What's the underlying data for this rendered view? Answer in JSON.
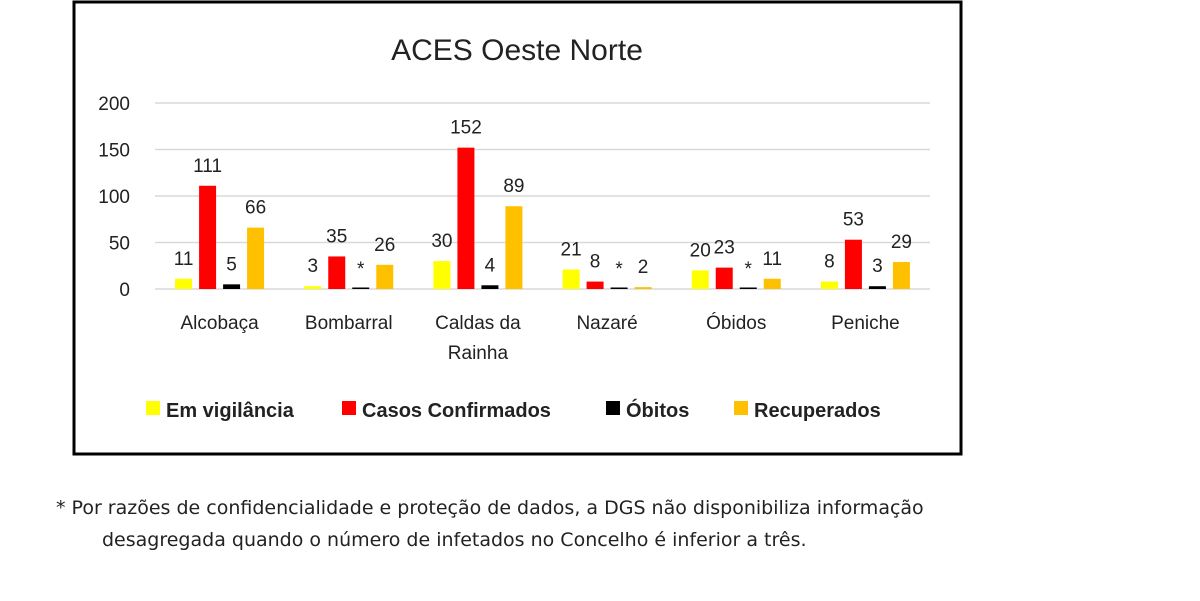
{
  "chart_data": {
    "type": "bar",
    "title": "ACES Oeste Norte",
    "categories": [
      "Alcobaça",
      "Bombarral",
      "Caldas da Rainha",
      "Nazaré",
      "Óbidos",
      "Peniche"
    ],
    "category_lines": [
      [
        "Alcobaça"
      ],
      [
        "Bombarral"
      ],
      [
        "Caldas da",
        "Rainha"
      ],
      [
        "Nazaré"
      ],
      [
        "Óbidos"
      ],
      [
        "Peniche"
      ]
    ],
    "series": [
      {
        "name": "Em vigilância",
        "color": "#ffff00",
        "values": [
          11,
          3,
          30,
          21,
          20,
          8
        ],
        "labels": [
          "11",
          "3",
          "30",
          "21",
          "20",
          "8"
        ]
      },
      {
        "name": "Casos Confirmados",
        "color": "#ff0000",
        "values": [
          111,
          35,
          152,
          8,
          23,
          53
        ],
        "labels": [
          "111",
          "35",
          "152",
          "8",
          "23",
          "53"
        ]
      },
      {
        "name": "Óbitos",
        "color": "#000000",
        "values": [
          5,
          0,
          4,
          0,
          0,
          3
        ],
        "labels": [
          "5",
          "*",
          "4",
          "*",
          "*",
          "3"
        ]
      },
      {
        "name": "Recuperados",
        "color": "#ffc000",
        "values": [
          66,
          26,
          89,
          2,
          11,
          29
        ],
        "labels": [
          "66",
          "26",
          "89",
          "2",
          "11",
          "29"
        ]
      }
    ],
    "ylim": [
      0,
      200
    ],
    "yticks": [
      0,
      50,
      100,
      150,
      200
    ],
    "grid": true,
    "legend_position": "bottom"
  },
  "footnote": {
    "line1": "* Por razões de confidencialidade e proteção de dados, a DGS não disponibiliza informação",
    "line2": "desagregada quando o número de infetados no Concelho é inferior a três."
  }
}
